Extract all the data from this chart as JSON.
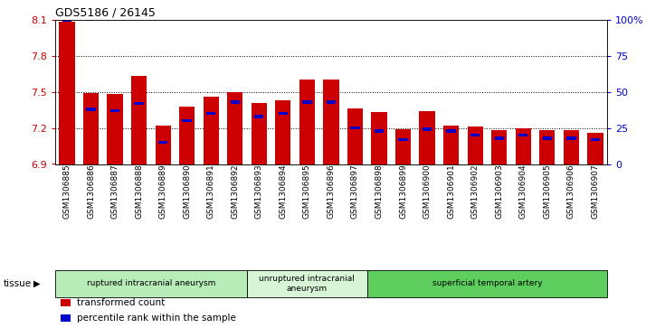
{
  "title": "GDS5186 / 26145",
  "samples": [
    "GSM1306885",
    "GSM1306886",
    "GSM1306887",
    "GSM1306888",
    "GSM1306889",
    "GSM1306890",
    "GSM1306891",
    "GSM1306892",
    "GSM1306893",
    "GSM1306894",
    "GSM1306895",
    "GSM1306896",
    "GSM1306897",
    "GSM1306898",
    "GSM1306899",
    "GSM1306900",
    "GSM1306901",
    "GSM1306902",
    "GSM1306903",
    "GSM1306904",
    "GSM1306905",
    "GSM1306906",
    "GSM1306907"
  ],
  "transformed_count": [
    8.08,
    7.49,
    7.48,
    7.63,
    7.22,
    7.38,
    7.46,
    7.5,
    7.41,
    7.43,
    7.6,
    7.6,
    7.36,
    7.33,
    7.19,
    7.34,
    7.22,
    7.21,
    7.18,
    7.2,
    7.18,
    7.18,
    7.16
  ],
  "percentile": [
    100,
    38,
    37,
    42,
    15,
    30,
    35,
    43,
    33,
    35,
    43,
    43,
    25,
    23,
    17,
    24,
    23,
    20,
    18,
    20,
    18,
    18,
    17
  ],
  "groups": [
    {
      "label": "ruptured intracranial aneurysm",
      "start": 0,
      "end": 8,
      "color": "#b8ecb8"
    },
    {
      "label": "unruptured intracranial\naneurysm",
      "start": 8,
      "end": 13,
      "color": "#d8f5d8"
    },
    {
      "label": "superficial temporal artery",
      "start": 13,
      "end": 23,
      "color": "#5ecf5e"
    }
  ],
  "ymin": 6.9,
  "ymax": 8.1,
  "yticks": [
    6.9,
    7.2,
    7.5,
    7.8,
    8.1
  ],
  "ytick_labels": [
    "6.9",
    "7.2",
    "7.5",
    "7.8",
    "8.1"
  ],
  "right_yticks": [
    0,
    25,
    50,
    75,
    100
  ],
  "right_ytick_labels": [
    "0",
    "25",
    "50",
    "75",
    "100%"
  ],
  "bar_color": "#cc0000",
  "percentile_color": "#0000cc",
  "plot_bg_color": "#ffffff",
  "fig_bg_color": "#ffffff",
  "legend_items": [
    {
      "label": "transformed count",
      "color": "#cc0000",
      "marker": "s"
    },
    {
      "label": "percentile rank within the sample",
      "color": "#0000cc",
      "marker": "s"
    }
  ]
}
